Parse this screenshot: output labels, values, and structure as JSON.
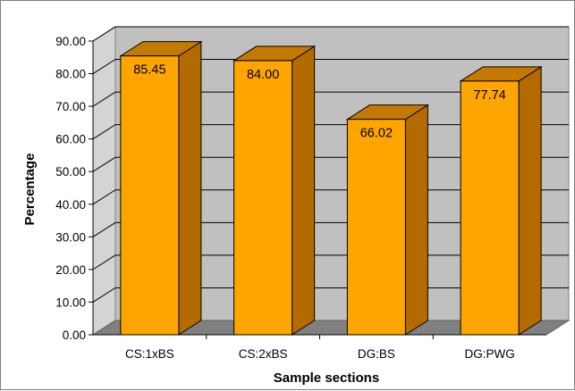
{
  "chart_data": {
    "type": "bar",
    "title": "",
    "xlabel": "Sample sections",
    "ylabel": "Percentage",
    "categories": [
      "CS:1xBS",
      "CS:2xBS",
      "DG:BS",
      "DG:PWG"
    ],
    "values": [
      85.45,
      84.0,
      66.02,
      77.74
    ],
    "data_labels": [
      "85.45",
      "84.00",
      "66.02",
      "77.74"
    ],
    "y_ticks": [
      "0.00",
      "10.00",
      "20.00",
      "30.00",
      "40.00",
      "50.00",
      "60.00",
      "70.00",
      "80.00",
      "90.00"
    ],
    "ylim": [
      0,
      90
    ],
    "grid": true,
    "legend": "none",
    "style": "3d-column",
    "colors": {
      "bar_front": "#FFA500",
      "bar_side": "#B36B00",
      "bar_top": "#C47A00",
      "back_wall": "#C0C0C0",
      "floor": "#808080",
      "gridline": "#000000"
    }
  }
}
